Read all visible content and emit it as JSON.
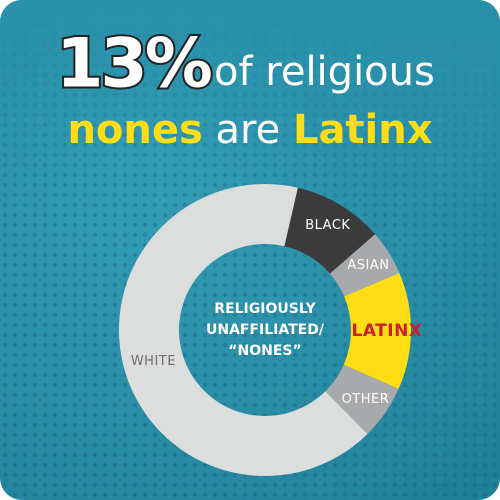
{
  "chart_data": {
    "type": "donut",
    "title_big": "13%",
    "title_rest": "of religious",
    "title_line2": [
      "nones",
      "are",
      "Latinx"
    ],
    "center_label": [
      "RELIGIOUSLY",
      "UNAFFILIATED/",
      "“NONES”"
    ],
    "categories": [
      "BLACK",
      "ASIAN",
      "LATINX",
      "OTHER",
      "WHITE"
    ],
    "values": [
      10,
      5,
      13,
      6,
      66
    ],
    "colors": [
      "#3b3b3b",
      "#a7a9ab",
      "#ffdd15",
      "#a7a9ab",
      "#dcdddd"
    ],
    "label_colors": [
      "#ffffff",
      "#ffffff",
      "#c8202f",
      "#ffffff",
      "#6d6e70"
    ],
    "start_angle": 13
  }
}
